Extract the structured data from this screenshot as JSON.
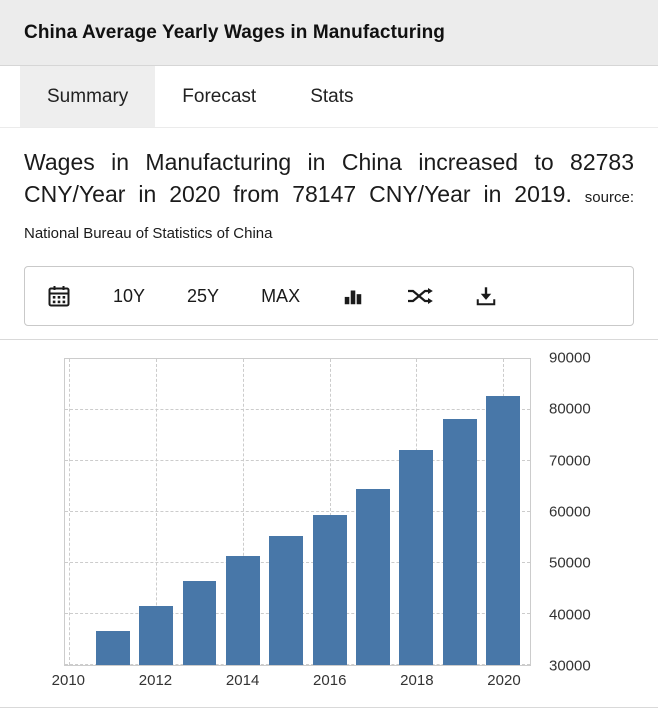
{
  "header": {
    "title": "China Average Yearly Wages in Manufacturing"
  },
  "tabs": [
    {
      "label": "Summary",
      "active": true
    },
    {
      "label": "Forecast",
      "active": false
    },
    {
      "label": "Stats",
      "active": false
    }
  ],
  "description": {
    "main": "Wages in Manufacturing in China increased to 82783 CNY/Year in 2020 from 78147 CNY/Year in 2019.",
    "source": "source: National Bureau of Statistics of China"
  },
  "toolbar": {
    "icons": [
      "calendar-icon",
      "column-chart-icon",
      "compare-icon",
      "download-icon"
    ],
    "range_buttons": [
      "10Y",
      "25Y",
      "MAX"
    ]
  },
  "chart_data": {
    "type": "bar",
    "x": [
      2011,
      2012,
      2013,
      2014,
      2015,
      2016,
      2017,
      2018,
      2019,
      2020
    ],
    "values": [
      36665,
      41650,
      46431,
      51369,
      55324,
      59470,
      64452,
      72088,
      78147,
      82783
    ],
    "units": "CNY/Year",
    "bar_color": "#4877a8",
    "ylim": [
      30000,
      90000
    ],
    "xlim": [
      2009.9,
      2020.62
    ],
    "y_ticks": [
      30000,
      40000,
      50000,
      60000,
      70000,
      80000,
      90000
    ],
    "x_ticks": [
      2010,
      2012,
      2014,
      2016,
      2018,
      2020
    ],
    "grid": "dashed",
    "legend": "none",
    "y_axis_side": "right",
    "bar_width_years": 0.78
  }
}
